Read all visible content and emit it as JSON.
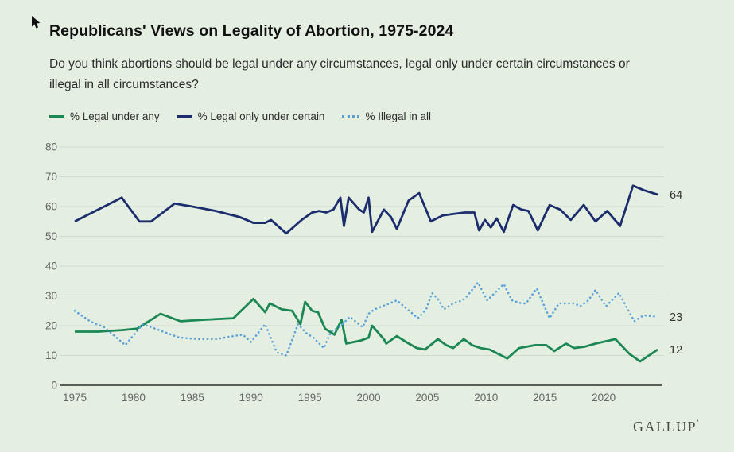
{
  "header": {
    "title": "Republicans' Views on Legality of Abortion, 1975-2024",
    "subtitle_line1": "Do you think abortions should be legal under any circumstances, legal only under certain circumstances or",
    "subtitle_line2": "illegal in all circumstances?"
  },
  "legend": {
    "items": [
      {
        "label": "% Legal under any",
        "color": "#1a8754",
        "style": "solid"
      },
      {
        "label": "% Legal only under certain",
        "color": "#1c2d6e",
        "style": "solid"
      },
      {
        "label": "% Illegal in all",
        "color": "#58a1d8",
        "style": "dotted"
      }
    ]
  },
  "colors": {
    "background": "#e4efe2",
    "grid": "#cfdacd",
    "axis": "#2b2b2b",
    "tick_text": "#666666",
    "end_label_text": "#333333",
    "green": "#1a8754",
    "navy": "#1c2d6e",
    "light_blue": "#58a1d8"
  },
  "chart_data": {
    "type": "line",
    "title": "Republicans' Views on Legality of Abortion, 1975-2024",
    "xlabel": "",
    "ylabel": "",
    "xlim": [
      1975,
      2024.9
    ],
    "ylim": [
      0,
      80
    ],
    "grid": true,
    "legend_position": "top-left",
    "x_ticks": [
      1975,
      1980,
      1985,
      1990,
      1995,
      2000,
      2005,
      2010,
      2015,
      2020
    ],
    "y_ticks": [
      0,
      10,
      20,
      30,
      40,
      50,
      60,
      70,
      80
    ],
    "series": [
      {
        "name": "% Legal only under certain",
        "color": "#1c2d6e",
        "dash": "solid",
        "end_label": "64",
        "points": [
          [
            1975,
            55
          ],
          [
            1977,
            59
          ],
          [
            1979,
            63
          ],
          [
            1980.5,
            55
          ],
          [
            1981.5,
            55
          ],
          [
            1983.5,
            61
          ],
          [
            1985,
            60
          ],
          [
            1987,
            58.5
          ],
          [
            1989,
            56.5
          ],
          [
            1990.2,
            54.5
          ],
          [
            1991.2,
            54.5
          ],
          [
            1991.7,
            55.5
          ],
          [
            1993,
            51
          ],
          [
            1994.3,
            55.5
          ],
          [
            1995.2,
            58
          ],
          [
            1995.8,
            58.5
          ],
          [
            1996.4,
            58
          ],
          [
            1997,
            59
          ],
          [
            1997.6,
            63
          ],
          [
            1997.9,
            53.5
          ],
          [
            1998.3,
            63
          ],
          [
            1999.2,
            59
          ],
          [
            1999.6,
            58
          ],
          [
            2000,
            63
          ],
          [
            2000.3,
            51.5
          ],
          [
            2001.3,
            59
          ],
          [
            2001.9,
            56.5
          ],
          [
            2002.4,
            52.5
          ],
          [
            2003.4,
            62
          ],
          [
            2004.3,
            64.5
          ],
          [
            2005.3,
            55
          ],
          [
            2006.3,
            57
          ],
          [
            2007.2,
            57.5
          ],
          [
            2008.2,
            58
          ],
          [
            2009,
            58
          ],
          [
            2009.4,
            52
          ],
          [
            2009.9,
            55.5
          ],
          [
            2010.4,
            53
          ],
          [
            2010.9,
            56
          ],
          [
            2011.5,
            51.5
          ],
          [
            2012.3,
            60.5
          ],
          [
            2013,
            59
          ],
          [
            2013.6,
            58.5
          ],
          [
            2014.4,
            52
          ],
          [
            2015.4,
            60.5
          ],
          [
            2016.3,
            59
          ],
          [
            2017.2,
            55.5
          ],
          [
            2018.3,
            60.5
          ],
          [
            2019.3,
            55
          ],
          [
            2020.3,
            58.5
          ],
          [
            2021.4,
            53.5
          ],
          [
            2022.5,
            67
          ],
          [
            2023.4,
            65.5
          ],
          [
            2024.6,
            64
          ]
        ]
      },
      {
        "name": "% Legal under any",
        "color": "#1a8754",
        "dash": "solid",
        "end_label": "12",
        "points": [
          [
            1975,
            18
          ],
          [
            1977,
            18
          ],
          [
            1979,
            18.5
          ],
          [
            1980.3,
            19
          ],
          [
            1982.3,
            24
          ],
          [
            1984,
            21.5
          ],
          [
            1986,
            22
          ],
          [
            1988.5,
            22.5
          ],
          [
            1990.2,
            29
          ],
          [
            1991.2,
            24.5
          ],
          [
            1991.6,
            27.5
          ],
          [
            1992.6,
            25.5
          ],
          [
            1993.5,
            25
          ],
          [
            1994.2,
            20.5
          ],
          [
            1994.6,
            28
          ],
          [
            1995.2,
            25
          ],
          [
            1995.7,
            24.5
          ],
          [
            1996.3,
            19
          ],
          [
            1997.1,
            17
          ],
          [
            1997.7,
            22
          ],
          [
            1998.1,
            14
          ],
          [
            1999.3,
            15
          ],
          [
            2000,
            16
          ],
          [
            2000.3,
            20
          ],
          [
            2001.3,
            15.5
          ],
          [
            2001.5,
            14
          ],
          [
            2002.4,
            16.5
          ],
          [
            2003.2,
            14.5
          ],
          [
            2004.1,
            12.5
          ],
          [
            2004.8,
            12
          ],
          [
            2005.9,
            15.5
          ],
          [
            2006.6,
            13.5
          ],
          [
            2007.2,
            12.5
          ],
          [
            2008.1,
            15.5
          ],
          [
            2008.8,
            13.5
          ],
          [
            2009.5,
            12.5
          ],
          [
            2010.3,
            12
          ],
          [
            2011.8,
            9
          ],
          [
            2012.8,
            12.5
          ],
          [
            2013.5,
            13
          ],
          [
            2014.2,
            13.5
          ],
          [
            2015.1,
            13.5
          ],
          [
            2015.8,
            11.5
          ],
          [
            2016.8,
            14
          ],
          [
            2017.5,
            12.5
          ],
          [
            2018.4,
            13
          ],
          [
            2019.3,
            14
          ],
          [
            2021,
            15.5
          ],
          [
            2022.2,
            10.5
          ],
          [
            2023.1,
            8
          ],
          [
            2024.6,
            12
          ]
        ]
      },
      {
        "name": "% Illegal in all",
        "color": "#58a1d8",
        "dash": "dotted",
        "end_label": "23",
        "points": [
          [
            1975,
            25
          ],
          [
            1976.3,
            21.5
          ],
          [
            1977.5,
            19.5
          ],
          [
            1979.3,
            13.5
          ],
          [
            1980.8,
            20.5
          ],
          [
            1983.9,
            16
          ],
          [
            1985.5,
            15.5
          ],
          [
            1987,
            15.5
          ],
          [
            1988.5,
            16.5
          ],
          [
            1989.3,
            17
          ],
          [
            1990,
            14.5
          ],
          [
            1991.2,
            20.5
          ],
          [
            1992.2,
            11
          ],
          [
            1993,
            10
          ],
          [
            1994,
            20.5
          ],
          [
            1994.7,
            17.5
          ],
          [
            1995.3,
            16
          ],
          [
            1996.2,
            12.5
          ],
          [
            1996.8,
            18
          ],
          [
            1997.5,
            19.5
          ],
          [
            1998.4,
            23
          ],
          [
            1999.5,
            19.5
          ],
          [
            2000,
            24
          ],
          [
            2000.5,
            25.5
          ],
          [
            2001.8,
            27.5
          ],
          [
            2002.4,
            28.5
          ],
          [
            2003.3,
            25.5
          ],
          [
            2004.2,
            22.5
          ],
          [
            2004.9,
            25.5
          ],
          [
            2005.4,
            31
          ],
          [
            2005.9,
            29
          ],
          [
            2006.4,
            25.5
          ],
          [
            2007.2,
            27.5
          ],
          [
            2008,
            28.5
          ],
          [
            2008.4,
            30
          ],
          [
            2009.3,
            34.5
          ],
          [
            2010.1,
            28.5
          ],
          [
            2011.5,
            34
          ],
          [
            2012.2,
            28.5
          ],
          [
            2013,
            27.5
          ],
          [
            2013.4,
            27.5
          ],
          [
            2014.3,
            32.5
          ],
          [
            2015.4,
            22.5
          ],
          [
            2016.2,
            27.5
          ],
          [
            2017.5,
            27.5
          ],
          [
            2018,
            26.5
          ],
          [
            2018.7,
            28.5
          ],
          [
            2019.3,
            32
          ],
          [
            2020.2,
            26.5
          ],
          [
            2021.3,
            31
          ],
          [
            2022.6,
            21.5
          ],
          [
            2023.4,
            23.5
          ],
          [
            2024.6,
            23
          ]
        ]
      }
    ]
  },
  "footer": {
    "logo": "GALLUP",
    "trademark": "ʼ"
  }
}
